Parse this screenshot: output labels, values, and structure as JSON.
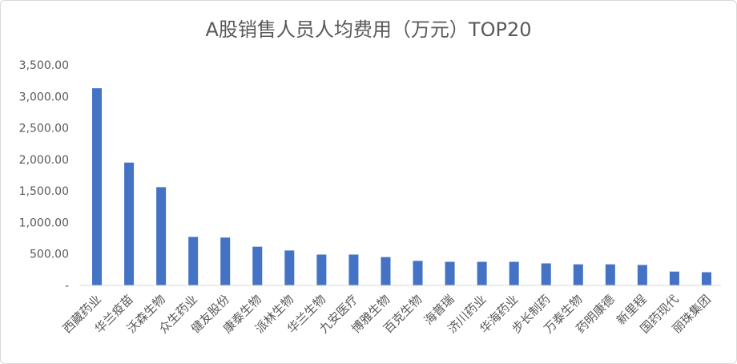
{
  "chart_data": {
    "type": "bar",
    "title": "A股销售人员人均费用（万元）TOP20",
    "xlabel": "",
    "ylabel": "",
    "ylim": [
      0,
      3500
    ],
    "yticks": [
      "-",
      "500.00",
      "1,000.00",
      "1,500.00",
      "2,000.00",
      "2,500.00",
      "3,000.00",
      "3,500.00"
    ],
    "grid": false,
    "legend": "none",
    "bar_color": "#4472c4",
    "categories": [
      "西藏药业",
      "华兰疫苗",
      "沃森生物",
      "众生药业",
      "健友股份",
      "康泰生物",
      "派林生物",
      "华兰生物",
      "九安医疗",
      "博雅生物",
      "百克生物",
      "海普瑞",
      "济川药业",
      "华海药业",
      "步长制药",
      "万泰生物",
      "药明康德",
      "新里程",
      "国药现代",
      "丽珠集团"
    ],
    "values": [
      3130,
      1950,
      1560,
      770,
      760,
      615,
      555,
      490,
      490,
      450,
      390,
      375,
      375,
      375,
      350,
      335,
      335,
      325,
      220,
      210
    ]
  }
}
